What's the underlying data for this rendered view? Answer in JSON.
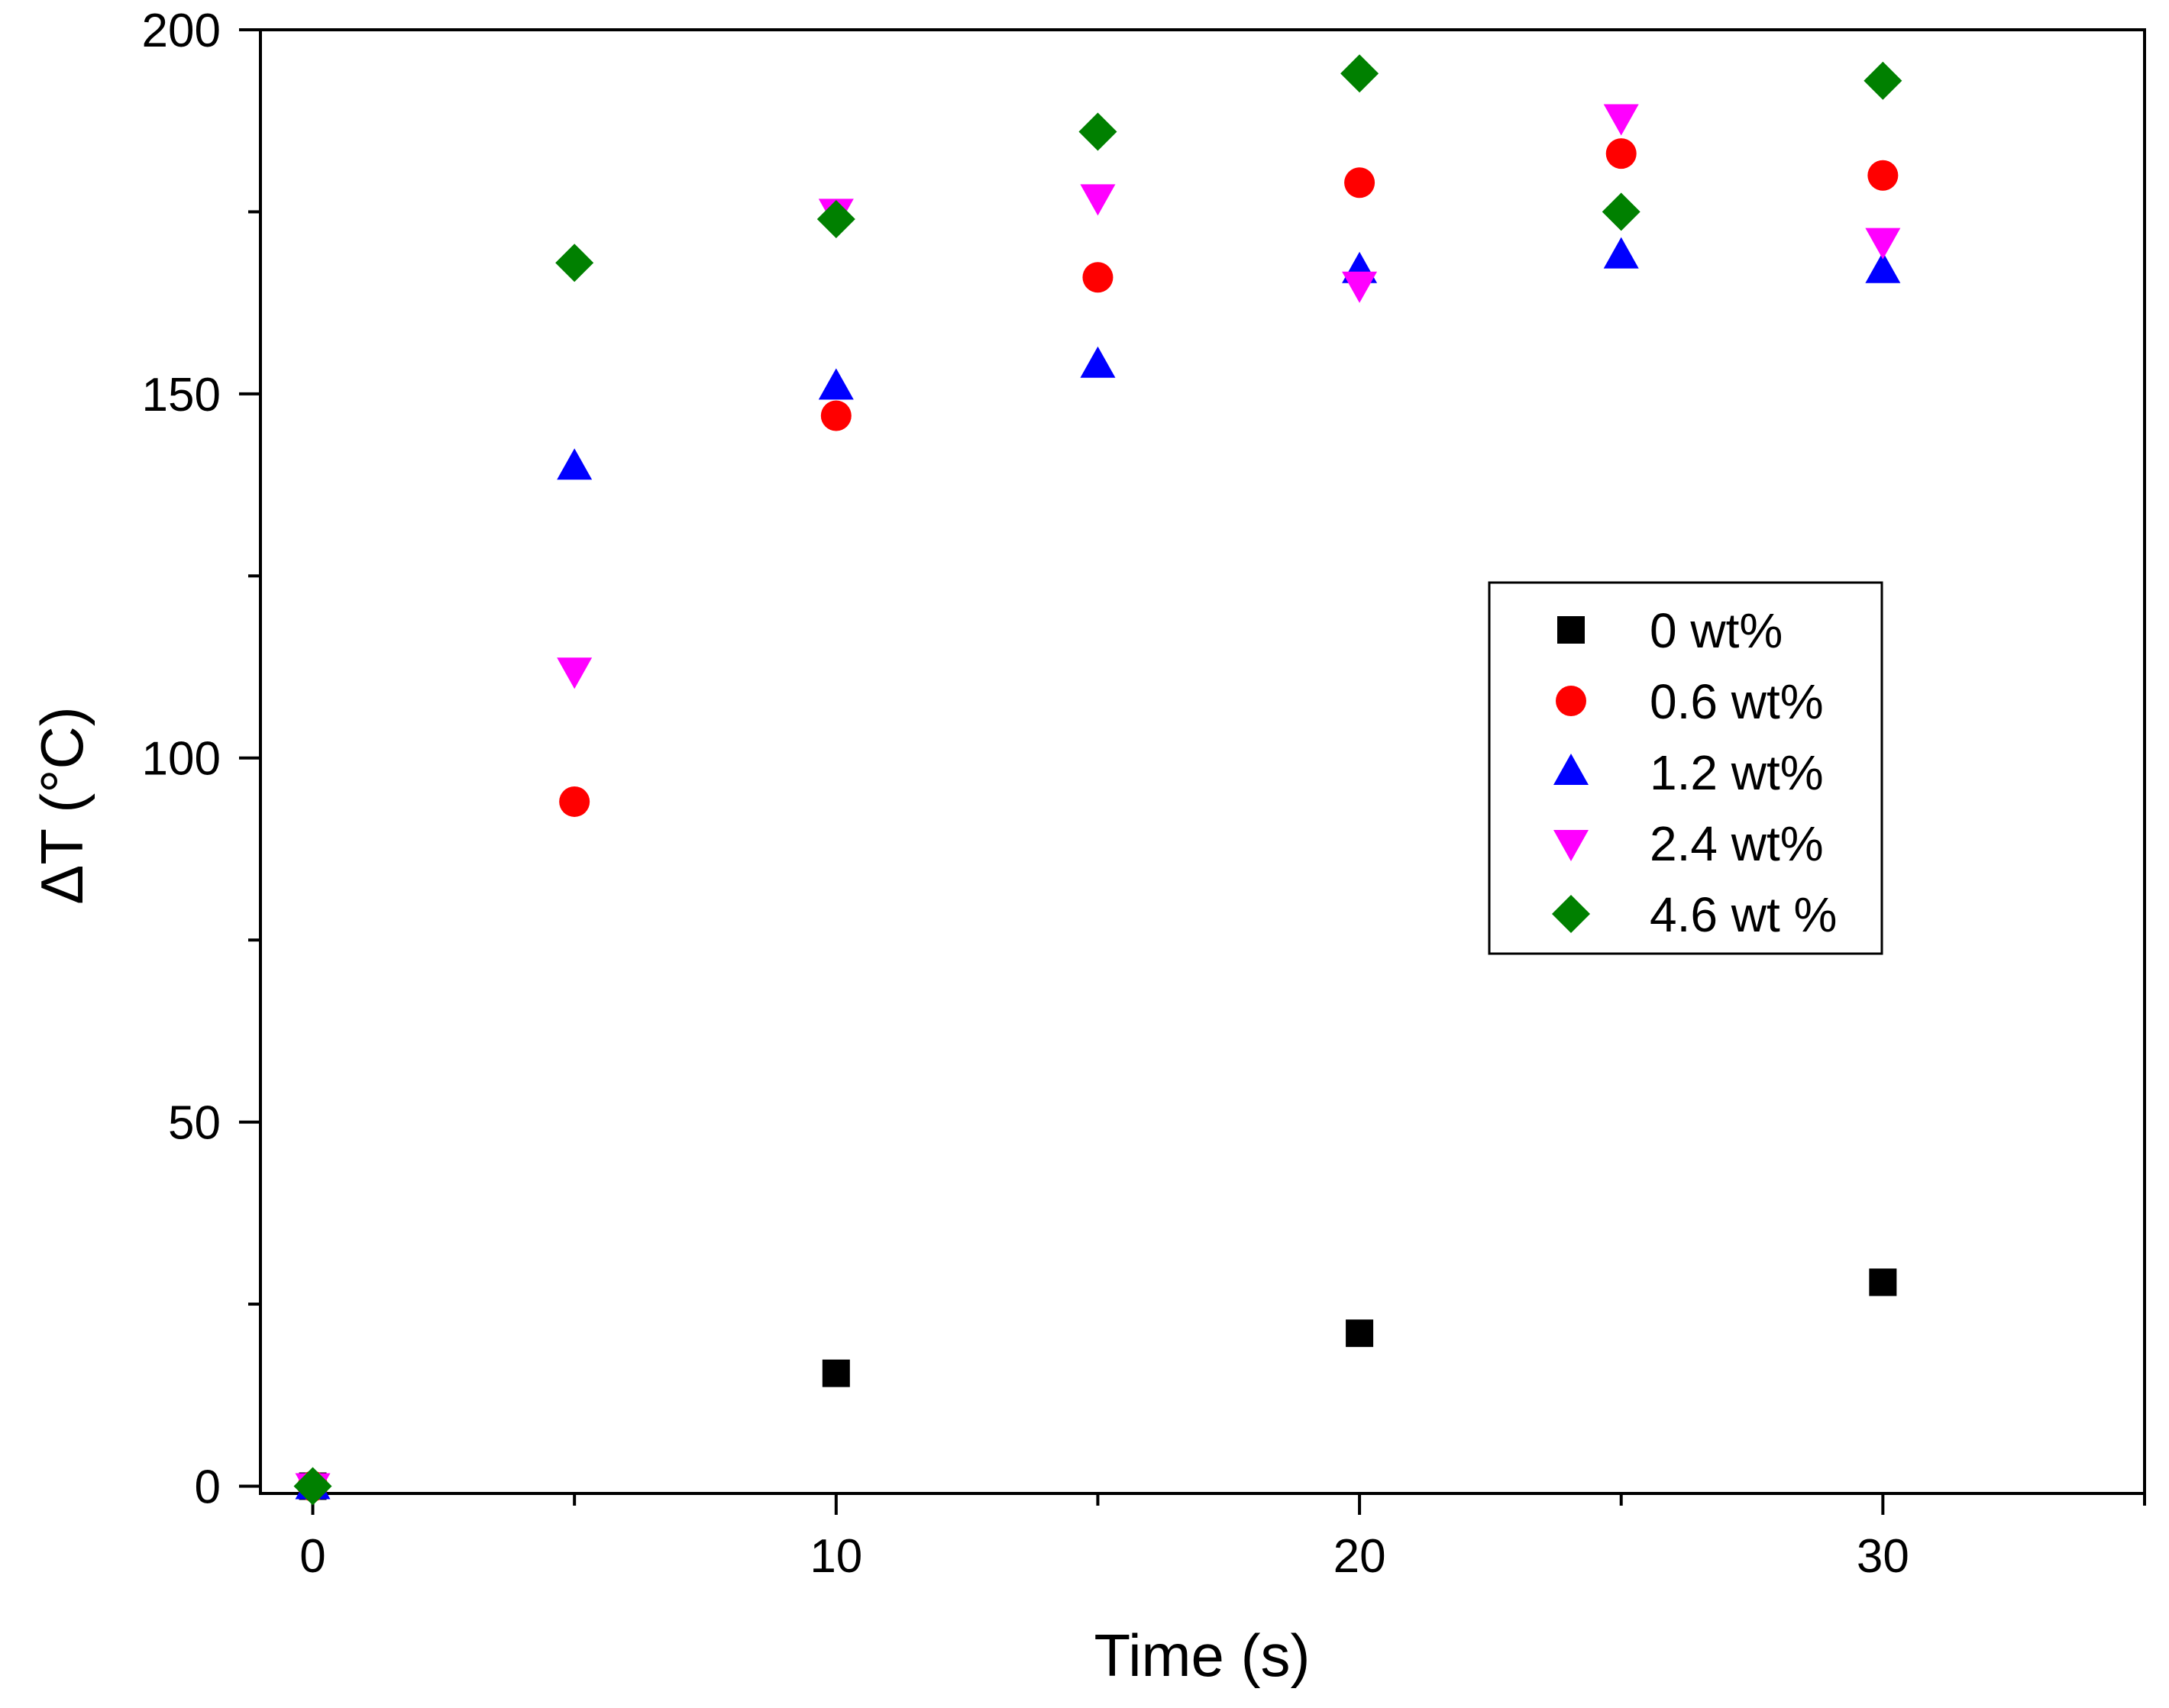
{
  "chart_data": {
    "type": "scatter",
    "title": "",
    "xlabel": "Time (s)",
    "ylabel": "ΔT (°C)",
    "xlim": [
      -1,
      35
    ],
    "ylim": [
      -1,
      200
    ],
    "x_ticks": [
      0,
      10,
      20,
      30
    ],
    "x_minor_ticks": [
      5,
      15,
      25,
      35
    ],
    "y_ticks": [
      0,
      50,
      100,
      150,
      200
    ],
    "y_minor_ticks": [
      25,
      75,
      125,
      175
    ],
    "grid": false,
    "legend_position": "center-right",
    "series": [
      {
        "name": "0 wt%",
        "marker": "square",
        "color": "#000000",
        "points": [
          [
            0,
            0
          ],
          [
            10,
            15.5
          ],
          [
            20,
            21
          ],
          [
            30,
            28
          ]
        ]
      },
      {
        "name": "0.6 wt%",
        "marker": "circle",
        "color": "#ff0000",
        "points": [
          [
            0,
            0
          ],
          [
            5,
            94
          ],
          [
            10,
            147
          ],
          [
            15,
            166
          ],
          [
            20,
            179
          ],
          [
            25,
            183
          ],
          [
            30,
            180
          ]
        ]
      },
      {
        "name": "1.2 wt%",
        "marker": "triangle-up",
        "color": "#0000ff",
        "points": [
          [
            0,
            0
          ],
          [
            5,
            140
          ],
          [
            10,
            151
          ],
          [
            15,
            154
          ],
          [
            20,
            167
          ],
          [
            25,
            169
          ],
          [
            30,
            167
          ]
        ]
      },
      {
        "name": "2.4 wt%",
        "marker": "triangle-down",
        "color": "#ff00ff",
        "points": [
          [
            0,
            0
          ],
          [
            5,
            112
          ],
          [
            10,
            175
          ],
          [
            15,
            177
          ],
          [
            20,
            165
          ],
          [
            25,
            188
          ],
          [
            30,
            171
          ]
        ]
      },
      {
        "name": "4.6 wt %",
        "marker": "diamond",
        "color": "#008000",
        "points": [
          [
            0,
            0
          ],
          [
            5,
            168
          ],
          [
            10,
            174
          ],
          [
            15,
            186
          ],
          [
            20,
            194
          ],
          [
            25,
            175
          ],
          [
            30,
            193
          ]
        ]
      }
    ]
  }
}
